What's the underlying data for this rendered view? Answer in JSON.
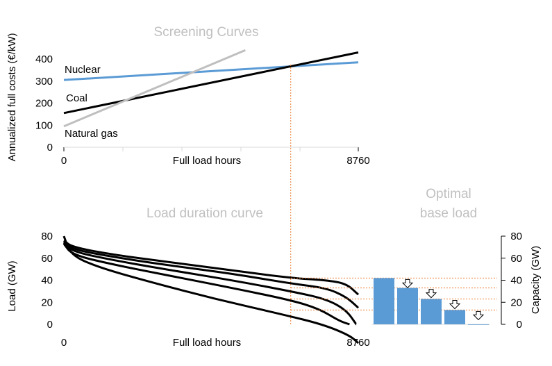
{
  "colors": {
    "nuclear": "#5b9bd5",
    "coal": "#000000",
    "gas": "#bfbfbf",
    "title_gray": "#c0c0c0",
    "guide": "#ed7d31",
    "bars": "#5b9bd5",
    "axis": "#000000"
  },
  "chart_data": [
    {
      "type": "line",
      "title": "Screening Curves",
      "xlabel": "Full load hours",
      "ylabel": "Annualized full costs (€/kW)",
      "xlim": [
        0,
        8760
      ],
      "ylim": [
        0,
        450
      ],
      "x_ticks": [
        "0",
        "8760"
      ],
      "y_ticks": [
        "0",
        "100",
        "200",
        "300",
        "400"
      ],
      "series": [
        {
          "name": "Nuclear",
          "color_key": "nuclear",
          "x": [
            0,
            8760
          ],
          "y": [
            305,
            385
          ]
        },
        {
          "name": "Coal",
          "color_key": "coal",
          "x": [
            0,
            8760
          ],
          "y": [
            155,
            430
          ]
        },
        {
          "name": "Natural gas",
          "color_key": "gas",
          "x": [
            0,
            5400
          ],
          "y": [
            95,
            440
          ]
        }
      ],
      "intersection_marker_x": 6750
    },
    {
      "type": "line",
      "title": "Load duration curve",
      "xlabel": "Full load hours",
      "ylabel": "Load (GW)",
      "xlim": [
        0,
        8760
      ],
      "ylim": [
        0,
        80
      ],
      "x_ticks": [
        "0",
        "8760"
      ],
      "y_ticks": [
        "0",
        "20",
        "40",
        "60",
        "80"
      ],
      "series": [
        {
          "x": [
            0,
            250,
            1500,
            3000,
            5000,
            6750,
            7800,
            8400,
            8760
          ],
          "y": [
            76,
            70,
            63,
            57,
            49,
            42,
            40,
            37,
            27
          ]
        },
        {
          "x": [
            0,
            250,
            1500,
            3000,
            5000,
            6750,
            7800,
            8400,
            8760
          ],
          "y": [
            75,
            68,
            61,
            54,
            46,
            37,
            33,
            25,
            15
          ]
        },
        {
          "x": [
            0,
            250,
            1500,
            3000,
            5000,
            6750,
            7800,
            8400,
            8700
          ],
          "y": [
            74,
            66,
            58,
            50,
            40,
            30,
            23,
            13,
            0
          ]
        },
        {
          "x": [
            0,
            250,
            1500,
            3000,
            5000,
            6750,
            7600,
            8200,
            8500
          ],
          "y": [
            73,
            63,
            54,
            45,
            33,
            22,
            14,
            3,
            0
          ]
        },
        {
          "x": [
            0,
            200,
            1000,
            2500,
            4500,
            6500,
            7700,
            8500,
            8760
          ],
          "y": [
            80,
            63,
            52,
            39,
            23,
            9,
            0,
            -10,
            -17
          ]
        }
      ]
    },
    {
      "type": "bar",
      "title": "Optimal base load",
      "ylabel": "Capacity (GW)",
      "ylim": [
        0,
        80
      ],
      "y_ticks": [
        "0",
        "20",
        "40",
        "60",
        "80"
      ],
      "values": [
        42,
        33,
        23,
        13,
        0
      ],
      "decrease_arrows_after": [
        0,
        1,
        2,
        3
      ]
    }
  ],
  "labels": {
    "nuclear": "Nuclear",
    "coal": "Coal",
    "gas": "Natural gas"
  }
}
